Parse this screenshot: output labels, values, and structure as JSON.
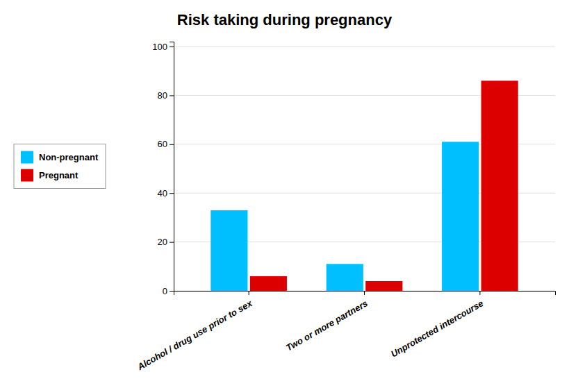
{
  "chart_data": {
    "type": "bar",
    "title": "Risk taking during pregnancy",
    "categories": [
      "Alcohol / drug use prior to sex",
      "Two or more partners",
      "Unprotected intercourse"
    ],
    "series": [
      {
        "name": "Non-pregnant",
        "color": "#00BFFF",
        "values": [
          33,
          11,
          61
        ]
      },
      {
        "name": "Pregnant",
        "color": "#DD0000",
        "values": [
          6,
          4,
          86
        ]
      }
    ],
    "ylim": [
      0,
      102
    ],
    "yticks": [
      0,
      20,
      40,
      60,
      80,
      100
    ],
    "grid": true,
    "legend": "left"
  }
}
